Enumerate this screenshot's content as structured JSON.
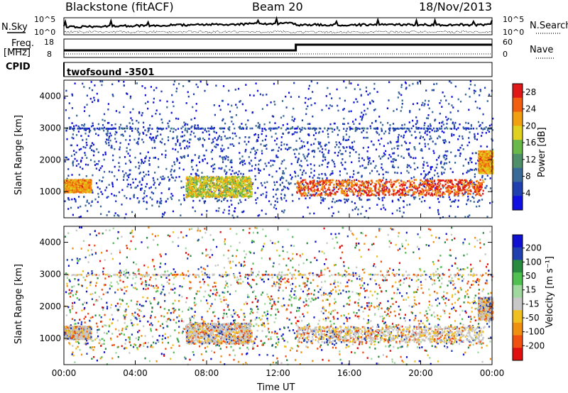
{
  "header": {
    "title": "Blackstone (fitACF)",
    "beam": "Beam 20",
    "date": "18/Nov/2013"
  },
  "param_panels": {
    "nsky_label": "N.Sky",
    "nsearch_label": "N.Search",
    "noise_ticks": [
      "10^5",
      "10^0"
    ],
    "freq_label_1": "Freq.",
    "freq_label_2": "[MHz]",
    "freq_ticks": [
      "18",
      "8"
    ],
    "nave_label": "Nave",
    "nave_ticks": [
      "60",
      "0"
    ],
    "cpid_label": "CPID",
    "cpid_text": "twofsound -3501"
  },
  "colors": {
    "power": [
      "#1010e0",
      "#2040b0",
      "#3a6a98",
      "#4f8f6a",
      "#6ab84a",
      "#e0d020",
      "#f0a010",
      "#f06010",
      "#e01818"
    ],
    "velocity": [
      "#e01010",
      "#f05010",
      "#f09010",
      "#f0c020",
      "#c8c8c8",
      "#a0d8a0",
      "#50c050",
      "#2a8a40",
      "#2040b0",
      "#1010d0"
    ],
    "power_bar": "#ff0000"
  },
  "chart_data": [
    {
      "type": "heatmap",
      "name": "power",
      "xlabel": "Time UT",
      "ylabel": "Slant Range [km]",
      "xlim": [
        0,
        24
      ],
      "ylim": [
        180,
        4500
      ],
      "x_ticks": [
        "00:00",
        "04:00",
        "08:00",
        "12:00",
        "16:00",
        "20:00",
        "00:00"
      ],
      "y_ticks": [
        1000,
        2000,
        3000,
        4000
      ],
      "colorbar": {
        "label": "Power [dB]",
        "ticks": [
          4,
          8,
          12,
          16,
          20,
          24,
          28
        ],
        "range": [
          0,
          30
        ]
      },
      "features": [
        {
          "t": [
            0.0,
            1.5
          ],
          "range": [
            1000,
            1400
          ],
          "value": 22
        },
        {
          "t": [
            6.8,
            10.5
          ],
          "range": [
            850,
            1500
          ],
          "value": 18
        },
        {
          "t": [
            13.0,
            23.5
          ],
          "range": [
            900,
            1400
          ],
          "value": 26
        },
        {
          "t": [
            23.2,
            24.0
          ],
          "range": [
            1600,
            2300
          ],
          "value": 22
        },
        {
          "t": [
            0.0,
            24.0
          ],
          "range": [
            3000,
            3000
          ],
          "value": 6
        }
      ]
    },
    {
      "type": "heatmap",
      "name": "velocity",
      "xlabel": "Time UT",
      "ylabel": "Slant Range [km]",
      "xlim": [
        0,
        24
      ],
      "ylim": [
        180,
        4500
      ],
      "x_ticks": [
        "00:00",
        "04:00",
        "08:00",
        "12:00",
        "16:00",
        "20:00",
        "00:00"
      ],
      "y_ticks": [
        1000,
        2000,
        3000,
        4000
      ],
      "colorbar": {
        "label": "Velocity [m s⁻¹]",
        "ticks": [
          200,
          100,
          50,
          15,
          -15,
          -50,
          -100,
          -200
        ]
      }
    }
  ]
}
